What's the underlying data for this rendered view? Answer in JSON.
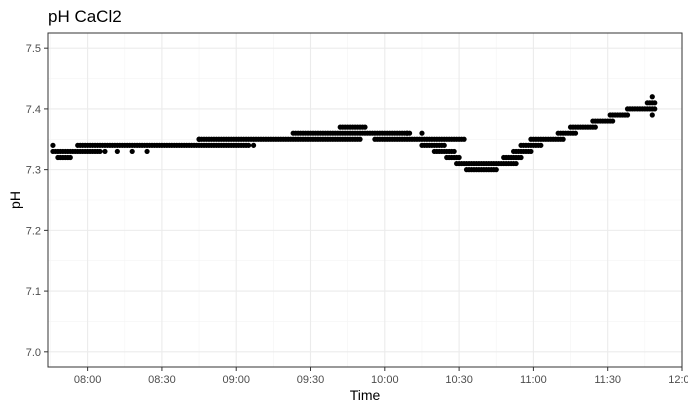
{
  "chart_data": {
    "type": "scatter",
    "title": "pH CaCl2",
    "xlabel": "Time",
    "ylabel": "pH",
    "x_unit": "time of day",
    "xlim": [
      "07:44",
      "12:00"
    ],
    "ylim": [
      6.975,
      7.525
    ],
    "x_ticks": [
      "08:00",
      "08:30",
      "09:00",
      "09:30",
      "10:00",
      "10:30",
      "11:00",
      "11:30",
      "12:00"
    ],
    "y_ticks": [
      "7.0",
      "7.1",
      "7.2",
      "7.3",
      "7.4",
      "7.5"
    ],
    "grid": true,
    "point_color": "#000000",
    "segments": [
      {
        "from": "07:46",
        "to": "08:05",
        "y": 7.33
      },
      {
        "from": "07:48",
        "to": "07:53",
        "y": 7.32
      },
      {
        "from": "07:56",
        "to": "09:05",
        "y": 7.34
      },
      {
        "from": "08:45",
        "to": "09:50",
        "y": 7.35
      },
      {
        "from": "09:23",
        "to": "10:10",
        "y": 7.36
      },
      {
        "from": "09:42",
        "to": "09:52",
        "y": 7.37
      },
      {
        "from": "09:56",
        "to": "10:32",
        "y": 7.35
      },
      {
        "from": "10:15",
        "to": "10:24",
        "y": 7.34
      },
      {
        "from": "10:20",
        "to": "10:28",
        "y": 7.33
      },
      {
        "from": "10:25",
        "to": "10:30",
        "y": 7.32
      },
      {
        "from": "10:29",
        "to": "10:53",
        "y": 7.31
      },
      {
        "from": "10:33",
        "to": "10:45",
        "y": 7.3
      },
      {
        "from": "10:48",
        "to": "10:55",
        "y": 7.32
      },
      {
        "from": "10:52",
        "to": "10:59",
        "y": 7.33
      },
      {
        "from": "10:55",
        "to": "11:03",
        "y": 7.34
      },
      {
        "from": "10:59",
        "to": "11:12",
        "y": 7.35
      },
      {
        "from": "11:10",
        "to": "11:17",
        "y": 7.36
      },
      {
        "from": "11:15",
        "to": "11:25",
        "y": 7.37
      },
      {
        "from": "11:24",
        "to": "11:32",
        "y": 7.38
      },
      {
        "from": "11:31",
        "to": "11:38",
        "y": 7.39
      },
      {
        "from": "11:38",
        "to": "11:48",
        "y": 7.4
      },
      {
        "from": "11:46",
        "to": "11:49",
        "y": 7.41
      }
    ],
    "points": [
      {
        "x": "07:46",
        "y": 7.34
      },
      {
        "x": "08:07",
        "y": 7.33
      },
      {
        "x": "08:12",
        "y": 7.33
      },
      {
        "x": "08:18",
        "y": 7.33
      },
      {
        "x": "08:24",
        "y": 7.33
      },
      {
        "x": "08:45",
        "y": 7.35
      },
      {
        "x": "09:07",
        "y": 7.34
      },
      {
        "x": "10:09",
        "y": 7.36
      },
      {
        "x": "10:15",
        "y": 7.36
      },
      {
        "x": "11:48",
        "y": 7.42
      },
      {
        "x": "11:48",
        "y": 7.39
      },
      {
        "x": "11:49",
        "y": 7.4
      }
    ]
  }
}
